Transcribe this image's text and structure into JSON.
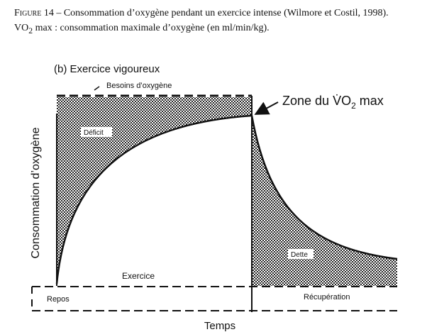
{
  "caption": {
    "label": "Figure 14",
    "text": "– Consommation d’oxygène pendant un exercice intense (Wilmore et Costil, 1998).",
    "symbol": "VO",
    "subscript": "2",
    "definition": "max : consommation maximale d’oxygène (en ml/min/kg)."
  },
  "diagram": {
    "title": "(b) Exercice vigoureux",
    "requirement": "Besoins d’oxygène",
    "zone_prefix": "Zone du",
    "zone_symbol": "V̇O",
    "zone_subscript": "2",
    "zone_suffix": "max",
    "deficit": "Déficit",
    "debt": "Dette",
    "exercise": "Exercice",
    "rest": "Repos",
    "recovery": "Récupération",
    "x_axis": "Temps",
    "y_axis": "Consommation d’oxygène"
  }
}
